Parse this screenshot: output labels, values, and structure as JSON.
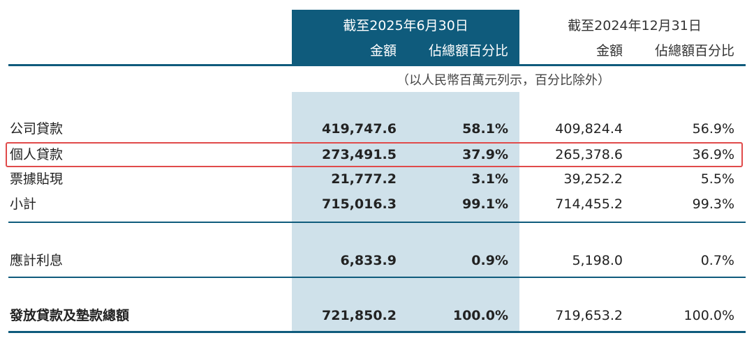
{
  "header": {
    "current_period": "截至2025年6月30日",
    "prior_period": "截至2024年12月31日",
    "amount_label": "金額",
    "pct_label": "佔總額百分比"
  },
  "unit_note": "（以人民幣百萬元列示，百分比除外）",
  "rows": [
    {
      "label": "公司貸款",
      "cur_amount": "419,747.6",
      "cur_pct": "58.1%",
      "prev_amount": "409,824.4",
      "prev_pct": "56.9%"
    },
    {
      "label": "個人貸款",
      "cur_amount": "273,491.5",
      "cur_pct": "37.9%",
      "prev_amount": "265,378.6",
      "prev_pct": "36.9%"
    },
    {
      "label": "票據貼現",
      "cur_amount": "21,777.2",
      "cur_pct": "3.1%",
      "prev_amount": "39,252.2",
      "prev_pct": "5.5%"
    },
    {
      "label": "小計",
      "cur_amount": "715,016.3",
      "cur_pct": "99.1%",
      "prev_amount": "714,455.2",
      "prev_pct": "99.3%"
    },
    {
      "label": "應計利息",
      "cur_amount": "6,833.9",
      "cur_pct": "0.9%",
      "prev_amount": "5,198.0",
      "prev_pct": "0.7%"
    },
    {
      "label": "發放貸款及墊款總額",
      "cur_amount": "721,850.2",
      "cur_pct": "100.0%",
      "prev_amount": "719,653.2",
      "prev_pct": "100.0%"
    }
  ],
  "colors": {
    "accent": "#0f5b7c",
    "band": "#cfe1ea",
    "highlight": "#e04a4a"
  }
}
